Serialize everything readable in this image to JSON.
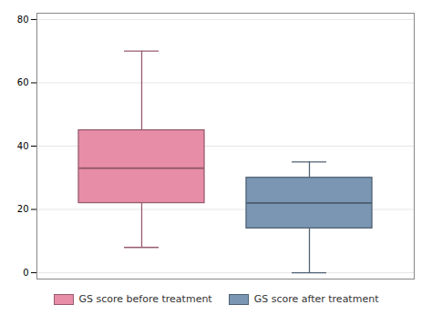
{
  "chart_data": {
    "type": "box",
    "series": [
      {
        "name": "GS score before treatment",
        "color": "#e88da8",
        "whisker_low": 8,
        "q1": 22,
        "median": 33,
        "q3": 45,
        "whisker_high": 70
      },
      {
        "name": "GS score after treatment",
        "color": "#7b96b2",
        "whisker_low": 0,
        "q1": 14,
        "median": 22,
        "q3": 30,
        "whisker_high": 35
      }
    ],
    "ylim": [
      -2,
      82
    ],
    "yticks": [
      0,
      20,
      40,
      60,
      80
    ],
    "grid": true,
    "legend": "bottom",
    "tick_labels": "y"
  }
}
